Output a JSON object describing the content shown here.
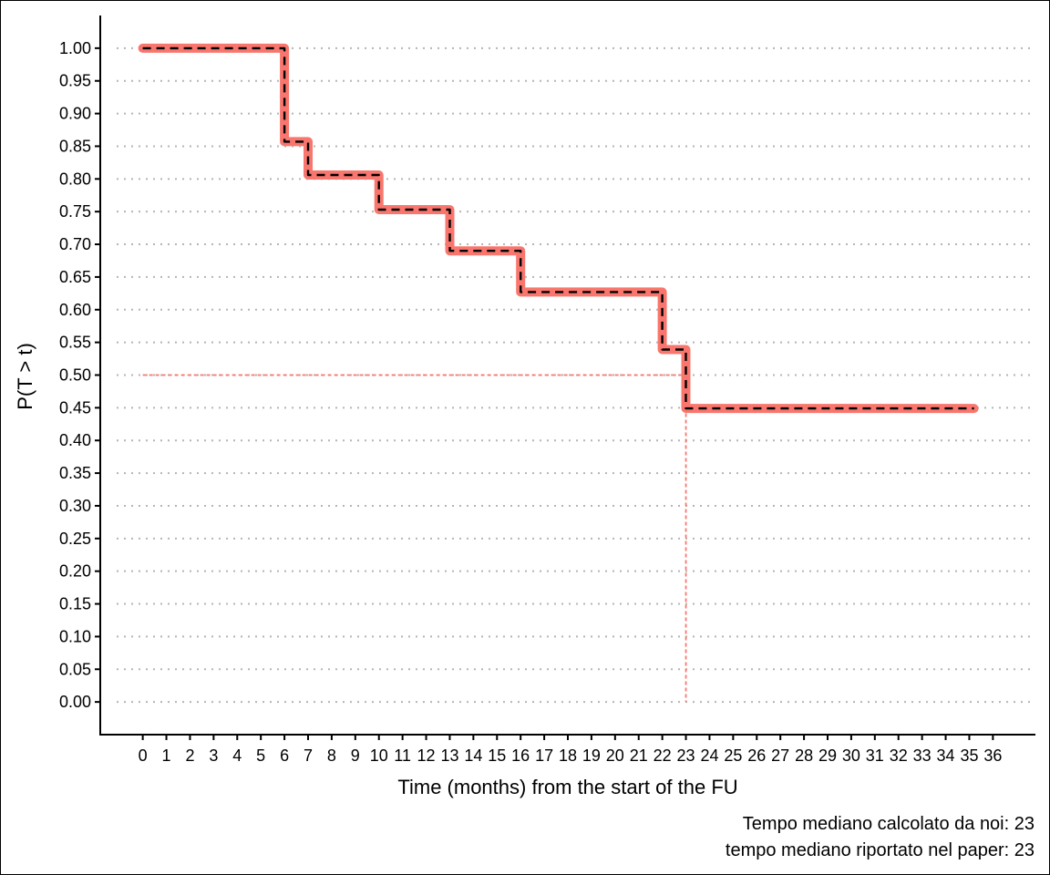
{
  "chart_data": {
    "type": "line",
    "xlabel": "Time (months) from the start of the FU",
    "ylabel": "P(T > t)",
    "x_ticks": [
      0,
      1,
      2,
      3,
      4,
      5,
      6,
      7,
      8,
      9,
      10,
      11,
      12,
      13,
      14,
      15,
      16,
      17,
      18,
      19,
      20,
      21,
      22,
      23,
      24,
      25,
      26,
      27,
      28,
      29,
      30,
      31,
      32,
      33,
      34,
      35,
      36
    ],
    "y_ticks": [
      "0.00",
      "0.05",
      "0.10",
      "0.15",
      "0.20",
      "0.25",
      "0.30",
      "0.35",
      "0.40",
      "0.45",
      "0.50",
      "0.55",
      "0.60",
      "0.65",
      "0.70",
      "0.75",
      "0.80",
      "0.85",
      "0.90",
      "0.95",
      "1.00"
    ],
    "xlim": [
      -1.8,
      37.8
    ],
    "ylim": [
      -0.05,
      1.05
    ],
    "grid": "horizontal-dotted",
    "series": [
      {
        "style": "solid",
        "color": "#F8766D",
        "steps": [
          {
            "x": 0,
            "y": 1.0
          },
          {
            "x": 6,
            "y": 0.857
          },
          {
            "x": 7,
            "y": 0.806
          },
          {
            "x": 10,
            "y": 0.753
          },
          {
            "x": 13,
            "y": 0.69
          },
          {
            "x": 16,
            "y": 0.627
          },
          {
            "x": 22,
            "y": 0.539
          },
          {
            "x": 23,
            "y": 0.449
          }
        ],
        "x_end": 35.2
      },
      {
        "style": "dashed",
        "color": "#000000",
        "steps": [
          {
            "x": 0,
            "y": 1.0
          },
          {
            "x": 6,
            "y": 0.857
          },
          {
            "x": 7,
            "y": 0.806
          },
          {
            "x": 10,
            "y": 0.753
          },
          {
            "x": 13,
            "y": 0.69
          },
          {
            "x": 16,
            "y": 0.627
          },
          {
            "x": 22,
            "y": 0.539
          },
          {
            "x": 23,
            "y": 0.449
          }
        ],
        "x_end": 35.2
      }
    ],
    "median_reference": {
      "y": 0.5,
      "x": 23,
      "color": "#F8766D"
    }
  },
  "captions": {
    "line1": "Tempo mediano calcolato da noi: 23",
    "line2": "tempo mediano riportato nel paper: 23"
  }
}
